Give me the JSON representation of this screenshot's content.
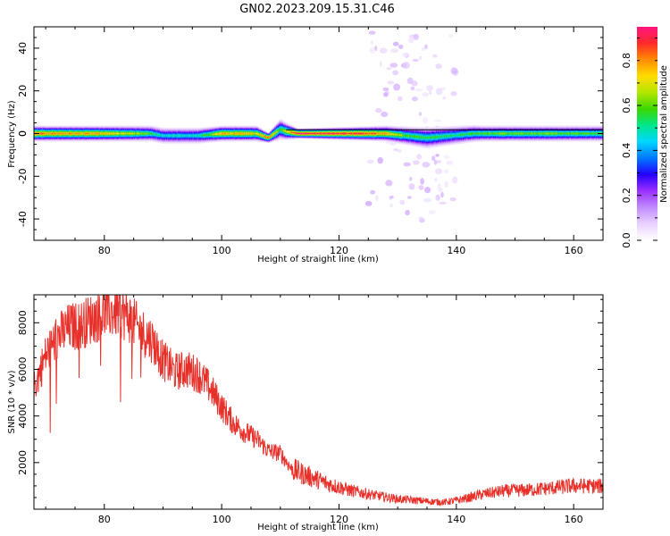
{
  "figure": {
    "title": "GN02.2023.209.15.31.C46"
  },
  "colors": {
    "snr_line": "#e8302a",
    "colormap": [
      "#ffffff",
      "#e9d2ff",
      "#c08cff",
      "#9b30ff",
      "#2400ff",
      "#0078ff",
      "#00d7ff",
      "#00e68c",
      "#3cd700",
      "#b4e600",
      "#ffdc00",
      "#ff8c00",
      "#ff2a2a",
      "#ff1480"
    ]
  },
  "chart_data": [
    {
      "type": "heatmap",
      "title": "",
      "xlabel": "Height of straight line (km)",
      "ylabel": "Frequency (Hz)",
      "xlim": [
        68,
        165
      ],
      "ylim": [
        -50,
        50
      ],
      "xticks": [
        80,
        100,
        120,
        140,
        160
      ],
      "yticks": [
        -40,
        -20,
        0,
        20,
        40
      ],
      "colorbar": {
        "label": "Normalized spectral amplitude",
        "range": [
          0.0,
          0.95
        ],
        "ticks": [
          0.0,
          0.2,
          0.4,
          0.6,
          0.8
        ]
      },
      "band_center_hz": [
        [
          68,
          0
        ],
        [
          88,
          0
        ],
        [
          90,
          -1
        ],
        [
          96,
          -1
        ],
        [
          100,
          0
        ],
        [
          106,
          0
        ],
        [
          108,
          -2
        ],
        [
          110,
          2
        ],
        [
          111,
          1
        ],
        [
          113,
          0
        ],
        [
          128,
          0
        ],
        [
          135,
          -2
        ],
        [
          143,
          0
        ],
        [
          165,
          0
        ]
      ],
      "band_halfwidth_hz": [
        [
          68,
          3
        ],
        [
          100,
          3
        ],
        [
          106,
          3
        ],
        [
          108,
          2
        ],
        [
          110,
          4
        ],
        [
          113,
          2
        ],
        [
          128,
          3
        ],
        [
          135,
          4
        ],
        [
          145,
          3
        ],
        [
          165,
          3
        ]
      ],
      "core_amplitude": [
        [
          68,
          0.8
        ],
        [
          78,
          0.75
        ],
        [
          86,
          0.62
        ],
        [
          90,
          0.45
        ],
        [
          96,
          0.45
        ],
        [
          100,
          0.75
        ],
        [
          106,
          0.7
        ],
        [
          108,
          0.85
        ],
        [
          110,
          0.55
        ],
        [
          113,
          0.92
        ],
        [
          126,
          0.85
        ],
        [
          132,
          0.55
        ],
        [
          140,
          0.5
        ],
        [
          148,
          0.6
        ],
        [
          165,
          0.55
        ]
      ],
      "scatter_region": {
        "x_range": [
          125,
          140
        ],
        "freq_range": [
          -42,
          48
        ],
        "amplitude": 0.1
      }
    },
    {
      "type": "line",
      "title": "",
      "xlabel": "Height of straight line (km)",
      "ylabel": "SNR (10 * v/v)",
      "xlim": [
        68,
        165
      ],
      "ylim": [
        0,
        9200
      ],
      "xticks": [
        80,
        100,
        120,
        140,
        160
      ],
      "yticks": [
        2000,
        4000,
        6000,
        8000
      ],
      "series": [
        {
          "name": "",
          "x": [
            68,
            70,
            72,
            74,
            76,
            78,
            80,
            82,
            84,
            86,
            88,
            90,
            92,
            94,
            96,
            98,
            100,
            102,
            104,
            106,
            108,
            110,
            112,
            114,
            116,
            118,
            120,
            122,
            124,
            126,
            128,
            130,
            132,
            134,
            136,
            138,
            140,
            142,
            144,
            146,
            148,
            150,
            152,
            154,
            156,
            158,
            160,
            162,
            165
          ],
          "values": [
            5200,
            6600,
            7400,
            7800,
            7900,
            8200,
            8400,
            8500,
            8300,
            7700,
            7300,
            6400,
            5900,
            6000,
            5800,
            5200,
            4400,
            3700,
            3300,
            3000,
            2500,
            2400,
            1700,
            1500,
            1300,
            1100,
            950,
            800,
            700,
            600,
            520,
            440,
            400,
            360,
            320,
            300,
            380,
            480,
            620,
            700,
            780,
            800,
            820,
            860,
            900,
            960,
            1000,
            1000,
            980
          ]
        }
      ]
    }
  ]
}
